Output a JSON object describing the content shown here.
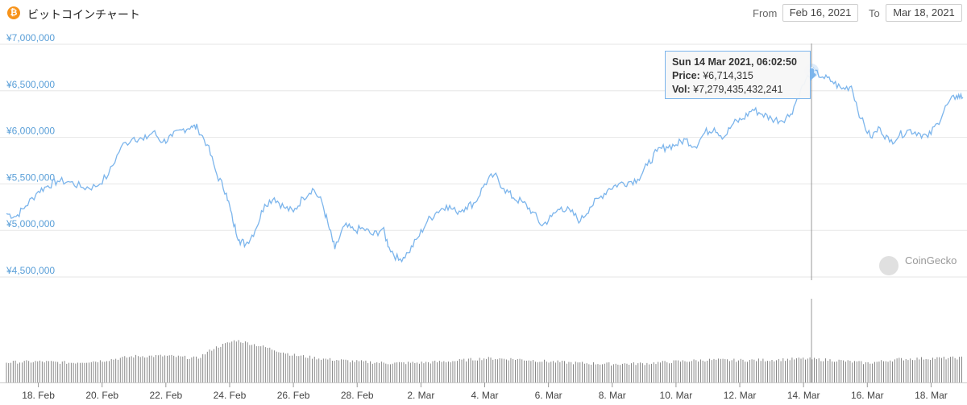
{
  "header": {
    "icon": "bitcoin-icon",
    "icon_glyph": "₿",
    "title": "ビットコインチャート",
    "from_label": "From",
    "from_value": "Feb 16, 2021",
    "to_label": "To",
    "to_value": "Mar 18, 2021"
  },
  "tooltip": {
    "datetime": "Sun 14 Mar 2021, 06:02:50",
    "price_label": "Price:",
    "price_value": "¥6,714,315",
    "vol_label": "Vol:",
    "vol_value": "¥7,279,435,432,241"
  },
  "watermark": "CoinGecko",
  "colors": {
    "line": "#7cb5ec",
    "volume": "#6b6b6b",
    "crosshair": "#999999",
    "axis_label": "#5a9fd8"
  },
  "chart_data": {
    "type": "line",
    "x_range": [
      "2021-02-17",
      "2021-03-18"
    ],
    "ylim": [
      4500000,
      7000000
    ],
    "y_ticks": [
      "¥4,500,000",
      "¥5,000,000",
      "¥5,500,000",
      "¥6,000,000",
      "¥6,500,000",
      "¥7,000,000"
    ],
    "y_tick_values": [
      4500000,
      5000000,
      5500000,
      6000000,
      6500000,
      7000000
    ],
    "x_ticks": [
      "18. Feb",
      "20. Feb",
      "22. Feb",
      "24. Feb",
      "26. Feb",
      "28. Feb",
      "2. Mar",
      "4. Mar",
      "6. Mar",
      "8. Mar",
      "10. Mar",
      "12. Mar",
      "14. Mar",
      "16. Mar",
      "18. Mar"
    ],
    "x_tick_days": [
      1,
      3,
      5,
      7,
      9,
      11,
      13,
      15,
      17,
      19,
      21,
      23,
      25,
      27,
      29
    ],
    "highlight": {
      "day": 25.25,
      "price": 6714315
    },
    "price_series": [
      [
        0.0,
        5180000
      ],
      [
        0.3,
        5150000
      ],
      [
        0.6,
        5260000
      ],
      [
        1.0,
        5420000
      ],
      [
        1.3,
        5480000
      ],
      [
        1.6,
        5530000
      ],
      [
        2.0,
        5520000
      ],
      [
        2.4,
        5460000
      ],
      [
        2.8,
        5470000
      ],
      [
        3.2,
        5600000
      ],
      [
        3.6,
        5900000
      ],
      [
        4.0,
        6000000
      ],
      [
        4.3,
        5970000
      ],
      [
        4.6,
        6060000
      ],
      [
        4.9,
        5950000
      ],
      [
        5.2,
        6010000
      ],
      [
        5.5,
        6080000
      ],
      [
        5.8,
        6120000
      ],
      [
        6.0,
        6100000
      ],
      [
        6.3,
        5920000
      ],
      [
        6.6,
        5600000
      ],
      [
        6.9,
        5400000
      ],
      [
        7.1,
        5100000
      ],
      [
        7.3,
        4900000
      ],
      [
        7.5,
        4850000
      ],
      [
        7.8,
        5000000
      ],
      [
        8.1,
        5280000
      ],
      [
        8.4,
        5350000
      ],
      [
        8.7,
        5250000
      ],
      [
        9.0,
        5200000
      ],
      [
        9.3,
        5350000
      ],
      [
        9.6,
        5450000
      ],
      [
        9.9,
        5300000
      ],
      [
        10.1,
        5050000
      ],
      [
        10.3,
        4800000
      ],
      [
        10.6,
        5050000
      ],
      [
        10.9,
        5000000
      ],
      [
        11.2,
        5020000
      ],
      [
        11.5,
        4950000
      ],
      [
        11.8,
        5020000
      ],
      [
        12.0,
        4820000
      ],
      [
        12.3,
        4680000
      ],
      [
        12.6,
        4760000
      ],
      [
        12.9,
        4920000
      ],
      [
        13.2,
        5100000
      ],
      [
        13.5,
        5200000
      ],
      [
        13.8,
        5270000
      ],
      [
        14.1,
        5200000
      ],
      [
        14.4,
        5250000
      ],
      [
        14.7,
        5300000
      ],
      [
        15.0,
        5500000
      ],
      [
        15.3,
        5600000
      ],
      [
        15.6,
        5450000
      ],
      [
        15.9,
        5350000
      ],
      [
        16.2,
        5300000
      ],
      [
        16.5,
        5200000
      ],
      [
        16.8,
        5050000
      ],
      [
        17.1,
        5150000
      ],
      [
        17.4,
        5250000
      ],
      [
        17.7,
        5200000
      ],
      [
        18.0,
        5100000
      ],
      [
        18.3,
        5250000
      ],
      [
        18.6,
        5350000
      ],
      [
        18.9,
        5450000
      ],
      [
        19.2,
        5500000
      ],
      [
        19.5,
        5520000
      ],
      [
        19.8,
        5550000
      ],
      [
        20.1,
        5700000
      ],
      [
        20.4,
        5850000
      ],
      [
        20.7,
        5900000
      ],
      [
        21.0,
        5920000
      ],
      [
        21.3,
        5980000
      ],
      [
        21.6,
        5900000
      ],
      [
        21.9,
        6050000
      ],
      [
        22.2,
        6100000
      ],
      [
        22.5,
        6000000
      ],
      [
        22.8,
        6150000
      ],
      [
        23.1,
        6200000
      ],
      [
        23.4,
        6300000
      ],
      [
        23.7,
        6250000
      ],
      [
        24.0,
        6200000
      ],
      [
        24.3,
        6180000
      ],
      [
        24.6,
        6250000
      ],
      [
        24.9,
        6500000
      ],
      [
        25.25,
        6714315
      ],
      [
        25.6,
        6650000
      ],
      [
        25.9,
        6600000
      ],
      [
        26.2,
        6520000
      ],
      [
        26.5,
        6550000
      ],
      [
        26.8,
        6200000
      ],
      [
        27.1,
        6000000
      ],
      [
        27.4,
        6100000
      ],
      [
        27.7,
        5950000
      ],
      [
        28.0,
        6020000
      ],
      [
        28.3,
        6080000
      ],
      [
        28.6,
        6050000
      ],
      [
        28.9,
        6000000
      ],
      [
        29.2,
        6150000
      ],
      [
        29.5,
        6350000
      ],
      [
        29.8,
        6450000
      ],
      [
        30.0,
        6430000
      ]
    ],
    "volume_series": [
      [
        0,
        5
      ],
      [
        1,
        5.2
      ],
      [
        2,
        4.9
      ],
      [
        3,
        5.4
      ],
      [
        4,
        6.5
      ],
      [
        5,
        6.6
      ],
      [
        6,
        6.0
      ],
      [
        6.5,
        8.5
      ],
      [
        7.2,
        10.5
      ],
      [
        8,
        9
      ],
      [
        9,
        6.8
      ],
      [
        10,
        5.8
      ],
      [
        11,
        5.2
      ],
      [
        12,
        4.8
      ],
      [
        13,
        4.9
      ],
      [
        14,
        5.3
      ],
      [
        15,
        6.0
      ],
      [
        16,
        5.8
      ],
      [
        17,
        5.2
      ],
      [
        18,
        4.8
      ],
      [
        19,
        4.6
      ],
      [
        20,
        4.7
      ],
      [
        21,
        5.2
      ],
      [
        22,
        5.6
      ],
      [
        23,
        5.5
      ],
      [
        24,
        5.6
      ],
      [
        25,
        5.9
      ],
      [
        26,
        5.5
      ],
      [
        27,
        4.8
      ],
      [
        28,
        5.8
      ],
      [
        29,
        6.0
      ],
      [
        30,
        6.1
      ]
    ]
  }
}
